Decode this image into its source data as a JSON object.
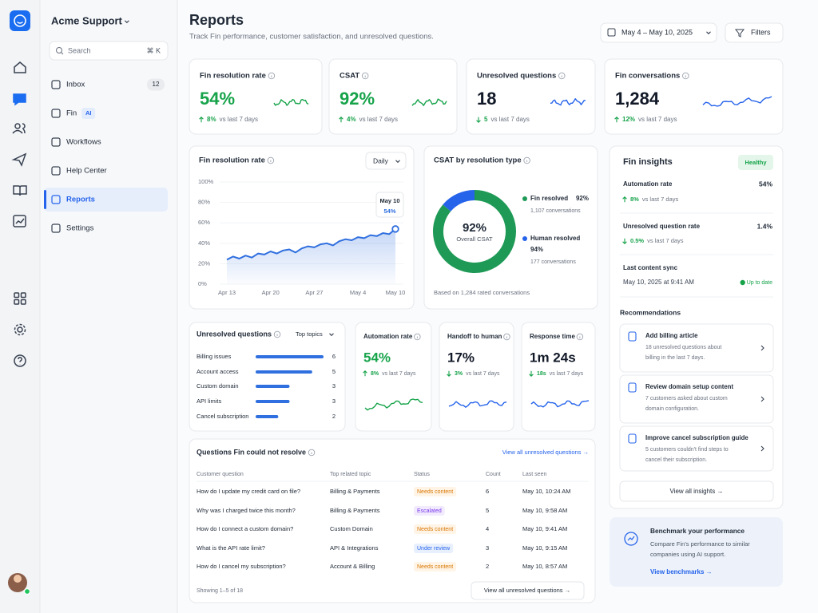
{
  "workspace": "Acme Support",
  "search": {
    "placeholder": "Search",
    "shortcut": "⌘ K"
  },
  "nav": [
    {
      "label": "Inbox",
      "badge": 12
    },
    {
      "label": "Fin",
      "badge": "AI"
    },
    {
      "label": "Workflows"
    },
    {
      "label": "Help Center"
    },
    {
      "label": "Reports"
    },
    {
      "label": "Settings"
    }
  ],
  "header": {
    "title": "Reports",
    "subtitle": "Track Fin performance, customer satisfaction, and unresolved questions.",
    "date_range": "May 4 – May 10, 2025",
    "filters": "Filters"
  },
  "kpis": [
    {
      "title": "Fin resolution rate",
      "value": "54%",
      "delta": "8%",
      "note": "vs last 7 days"
    },
    {
      "title": "CSAT",
      "value": "92%",
      "delta": "4%",
      "note": "vs last 7 days"
    },
    {
      "title": "Unresolved questions",
      "value": 18,
      "delta": 5,
      "note": "vs last 7 days"
    },
    {
      "title": "Fin conversations",
      "value": "1,284",
      "delta": "12%",
      "note": "vs last 7 days"
    }
  ],
  "resolution_chart": {
    "type": "line",
    "title": "Fin resolution rate",
    "granularity": "Daily",
    "categories": [
      "Apr 13",
      null,
      null,
      null,
      null,
      null,
      null,
      "Apr 20",
      null,
      null,
      null,
      null,
      null,
      null,
      "Apr 27",
      null,
      null,
      null,
      null,
      null,
      null,
      "May 4",
      null,
      null,
      null,
      null,
      null,
      "May 10"
    ],
    "values": [
      24,
      27,
      25,
      28,
      26,
      30,
      29,
      32,
      30,
      33,
      34,
      31,
      35,
      37,
      36,
      39,
      40,
      38,
      42,
      44,
      43,
      46,
      45,
      48,
      47,
      50,
      49,
      54
    ],
    "ylim": [
      0,
      100
    ],
    "yticks": [
      {
        "value": 0,
        "label": "0%"
      },
      {
        "value": 20,
        "label": "20%"
      },
      {
        "value": 40,
        "label": "40%"
      },
      {
        "value": 60,
        "label": "60%"
      },
      {
        "value": 80,
        "label": "80%"
      },
      {
        "value": 100,
        "label": "100%"
      }
    ],
    "color": "#2f6fdf",
    "tooltip": {
      "label": "54%"
    }
  },
  "csat_chart": {
    "type": "pie",
    "title": "CSAT by resolution type",
    "center_value": "92%",
    "center_label": "Overall CSAT",
    "segments": [
      {
        "name": "Fin resolved",
        "score": "92%",
        "count": 1107,
        "count_label": "1,107 conversations",
        "color": "#1e9a56"
      },
      {
        "name": "Human resolved",
        "score": "94%",
        "count": 177,
        "count_label": "177 conversations",
        "color": "#2563eb"
      }
    ],
    "footnote": "Based on 1,284 rated conversations"
  },
  "topics_chart": {
    "type": "bar",
    "title": "Unresolved questions",
    "filter": "Top topics",
    "categories": [
      "Billing issues",
      "Account access",
      "Custom domain",
      "API limits",
      "Cancel subscription"
    ],
    "values": [
      6,
      5,
      3,
      3,
      2
    ],
    "color": "#2f6fdf"
  },
  "metrics": [
    {
      "title": "Automation rate",
      "value": "54%",
      "delta": "8%",
      "note": "vs last 7 days"
    },
    {
      "title": "Handoff to human",
      "value": "17%",
      "delta": "3%",
      "note": "vs last 7 days"
    },
    {
      "title": "Response time",
      "value": "1m 24s",
      "delta": "18s",
      "note": "vs last 7 days"
    }
  ],
  "table": {
    "title": "Questions Fin could not resolve",
    "link": "View all unresolved questions →",
    "columns": [
      "Customer question",
      "Top related topic",
      "Status",
      "Count",
      "Last seen"
    ],
    "rows": [
      [
        "How do I update my credit card on file?",
        "Billing & Payments",
        "Needs content",
        6,
        "May 10, 10:24 AM"
      ],
      [
        "Why was I charged twice this month?",
        "Billing & Payments",
        "Escalated",
        5,
        "May 10, 9:58 AM"
      ],
      [
        "How do I connect a custom domain?",
        "Custom Domain",
        "Needs content",
        4,
        "May 10, 9:41 AM"
      ],
      [
        "What is the API rate limit?",
        "API & Integrations",
        "Under review",
        3,
        "May 10, 9:15 AM"
      ],
      [
        "How do I cancel my subscription?",
        "Account & Billing",
        "Needs content",
        2,
        "May 10, 8:57 AM"
      ]
    ],
    "footer": "Showing 1–5 of 18",
    "button": "View all unresolved questions →"
  },
  "insights": {
    "title": "Fin insights",
    "status": "Healthy",
    "items": [
      {
        "label": "Automation rate",
        "value": "54%",
        "delta": "8%",
        "note": "vs last 7 days"
      },
      {
        "label": "Unresolved question rate",
        "value": "1.4%",
        "delta": "0.5%",
        "note": "vs last 7 days"
      }
    ],
    "sync": {
      "label": "Last content sync",
      "time": "May 10, 2025 at 9:41 AM",
      "status": "Up to date"
    },
    "recommendations_title": "Recommendations",
    "recommendations": [
      {
        "title": "Add billing article",
        "lines": [
          "18 unresolved questions about",
          "billing in the last 7 days."
        ]
      },
      {
        "title": "Review domain setup content",
        "lines": [
          "7 customers asked about custom",
          "domain configuration."
        ]
      },
      {
        "title": "Improve cancel subscription guide",
        "lines": [
          "5 customers couldn't find steps to",
          "cancel their subscription."
        ]
      }
    ],
    "button": "View all insights →"
  },
  "benchmark": {
    "title": "Benchmark your performance",
    "lines": [
      "Compare Fin's performance to similar",
      "companies using AI support."
    ],
    "link": "View benchmarks →"
  }
}
